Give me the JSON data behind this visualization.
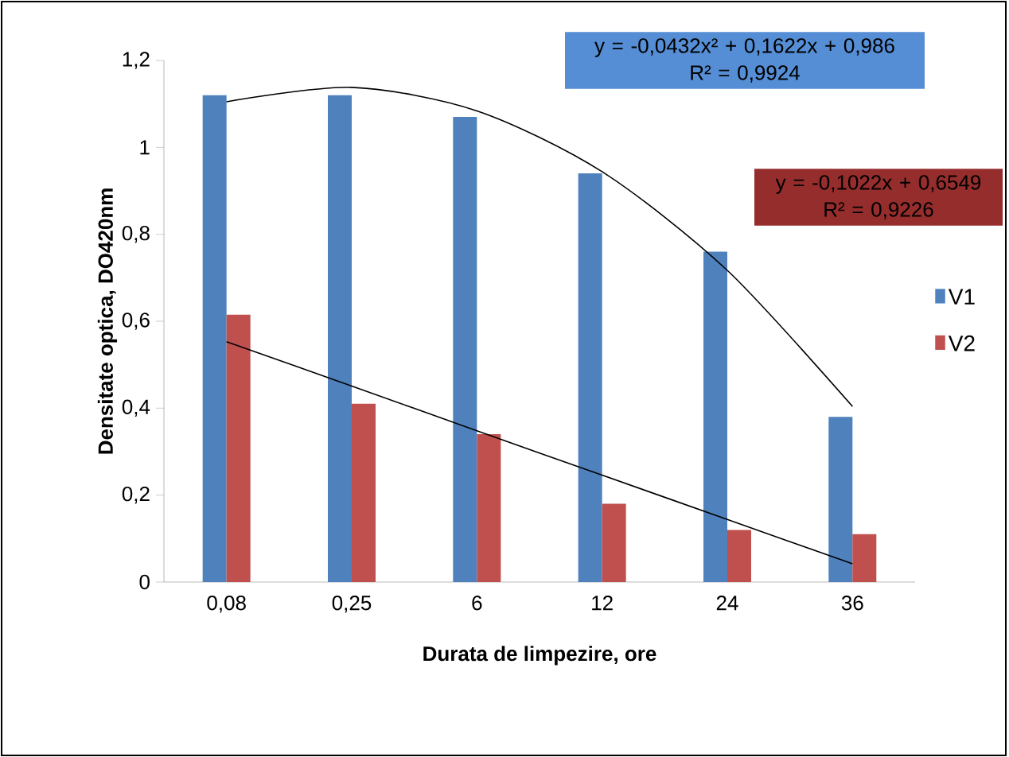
{
  "chart_data": {
    "type": "bar",
    "xlabel": "Durata de limpezire, ore",
    "ylabel": "Densitate optica, DO420nm",
    "categories": [
      "0,08",
      "0,25",
      "6",
      "12",
      "24",
      "36"
    ],
    "series": [
      {
        "name": "V1",
        "color": "#4f81bd",
        "values": [
          1.12,
          1.12,
          1.07,
          0.94,
          0.76,
          0.38
        ]
      },
      {
        "name": "V2",
        "color": "#c0504d",
        "values": [
          0.615,
          0.41,
          0.34,
          0.18,
          0.12,
          0.11
        ]
      },
      {
        "type": "line",
        "color": "#000000",
        "values": [
          1.105,
          1.138,
          1.084,
          0.944,
          0.717,
          0.404
        ]
      },
      {
        "type": "line",
        "color": "#000000",
        "values": [
          0.553,
          0.451,
          0.348,
          0.246,
          0.144,
          0.042
        ]
      }
    ],
    "ylim": [
      0,
      1.2
    ],
    "yticks": [
      0,
      {
        "value": 0.2,
        "label": "0,2"
      },
      {
        "value": 0.4,
        "label": "0,4"
      },
      {
        "value": 0.6,
        "label": "0,6"
      },
      {
        "value": 0.8,
        "label": "0,8"
      },
      1,
      {
        "value": 1.2,
        "label": "1,2"
      }
    ],
    "annotations": [
      "y = -0,0432x² + 0,1622x + 0,986\nR² = 0,9924",
      "y = -0,1022x + 0,6549\nR² = 0,9226"
    ],
    "legend": "right",
    "grid": false
  }
}
